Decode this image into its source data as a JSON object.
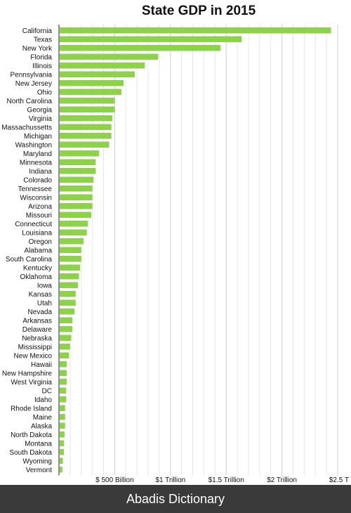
{
  "chart_data": {
    "type": "bar",
    "orientation": "horizontal",
    "title": "State GDP in 2015",
    "xlabel": "",
    "ylabel": "",
    "xlim": [
      0,
      2.5
    ],
    "unit": "trillion USD",
    "grid": true,
    "bar_color": "#8ed14a",
    "x_ticks": [
      {
        "value": 0.5,
        "label": "$ 500 Billion"
      },
      {
        "value": 1.0,
        "label": "$1 Trillion"
      },
      {
        "value": 1.5,
        "label": "$1.5 Trillion"
      },
      {
        "value": 2.0,
        "label": "$2 Trillion"
      },
      {
        "value": 2.5,
        "label": "$2.5 T"
      }
    ],
    "categories": [
      "California",
      "Texas",
      "New York",
      "Florida",
      "Illinois",
      "Pennsylvania",
      "New Jersey",
      "Ohio",
      "North Carolina",
      "Georgia",
      "Virginia",
      "Massachussetts",
      "Michigan",
      "Washington",
      "Maryland",
      "Minnesota",
      "Indiana",
      "Colorado",
      "Tennessee",
      "Wisconsin",
      "Arizona",
      "Missouri",
      "Connecticut",
      "Louisiana",
      "Oregon",
      "Alabama",
      "South Carolina",
      "Kentucky",
      "Oklahoma",
      "Iowa",
      "Kansas",
      "Utah",
      "Nevada",
      "Arkansas",
      "Delaware",
      "Nebraska",
      "Mississippi",
      "New Mexico",
      "Hawaii",
      "New Hampshire",
      "West Virginia",
      "DC",
      "Idaho",
      "Rhode Island",
      "Maine",
      "Alaska",
      "North Dakota",
      "Montana",
      "South Dakota",
      "Wyoming",
      "Vermont"
    ],
    "values": [
      2.44,
      1.64,
      1.45,
      0.89,
      0.77,
      0.68,
      0.58,
      0.56,
      0.5,
      0.5,
      0.48,
      0.47,
      0.47,
      0.45,
      0.36,
      0.33,
      0.33,
      0.31,
      0.3,
      0.3,
      0.3,
      0.29,
      0.26,
      0.25,
      0.22,
      0.2,
      0.2,
      0.19,
      0.18,
      0.17,
      0.15,
      0.15,
      0.14,
      0.12,
      0.12,
      0.11,
      0.1,
      0.09,
      0.07,
      0.07,
      0.07,
      0.065,
      0.065,
      0.055,
      0.055,
      0.055,
      0.05,
      0.045,
      0.045,
      0.035,
      0.03
    ]
  },
  "footer": {
    "text": "Abadis Dictionary"
  }
}
